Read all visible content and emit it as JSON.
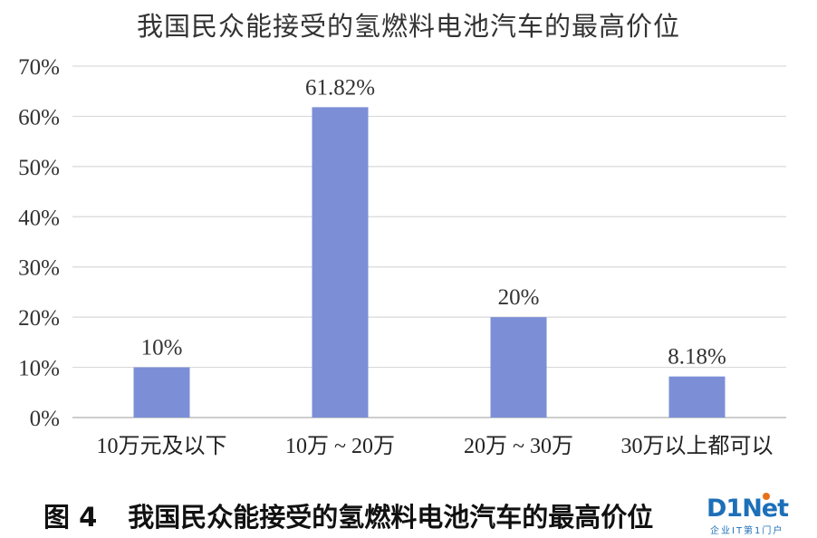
{
  "chart_data": {
    "type": "bar",
    "title": "我国民众能接受的氢燃料电池汽车的最高价位",
    "categories": [
      "10万元及以下",
      "10万 ~ 20万",
      "20万 ~ 30万",
      "30万以上都可以"
    ],
    "values": [
      10,
      61.82,
      20,
      8.18
    ],
    "data_labels": [
      "10%",
      "61.82%",
      "20%",
      "8.18%"
    ],
    "ylim": [
      0,
      70
    ],
    "y_ticks": [
      0,
      10,
      20,
      30,
      40,
      50,
      60,
      70
    ],
    "y_tick_labels": [
      "0%",
      "10%",
      "20%",
      "30%",
      "40%",
      "50%",
      "60%",
      "70%"
    ],
    "grid": true,
    "legend": "none",
    "bar_color": "#7c8fd6",
    "grid_color": "#d9d9d9"
  },
  "caption": {
    "figure_number": "图 4",
    "text": "我国民众能接受的氢燃料电池汽车的最高价位"
  },
  "watermark": {
    "main": "D1Net",
    "sub": "企业IT第1门户"
  }
}
